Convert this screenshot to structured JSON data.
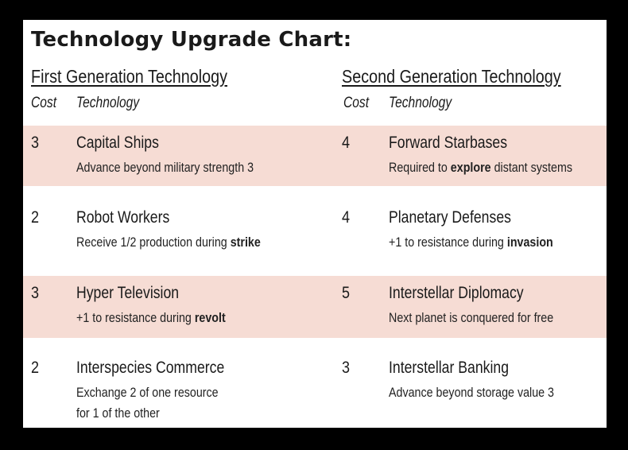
{
  "title": "Technology Upgrade Chart:",
  "first": {
    "heading": "First Generation Technology",
    "cost_label": "Cost",
    "tech_label": "Technology",
    "items": [
      {
        "cost": "3",
        "name": "Capital Ships",
        "desc_pre": "Advance beyond military strength 3",
        "desc_bold": "",
        "desc_post": "",
        "desc_line2": ""
      },
      {
        "cost": "2",
        "name": "Robot Workers",
        "desc_pre": "Receive 1/2 production during ",
        "desc_bold": "strike",
        "desc_post": "",
        "desc_line2": ""
      },
      {
        "cost": "3",
        "name": "Hyper Television",
        "desc_pre": "+1 to resistance during ",
        "desc_bold": "revolt",
        "desc_post": "",
        "desc_line2": ""
      },
      {
        "cost": "2",
        "name": "Interspecies Commerce",
        "desc_pre": "Exchange 2 of one resource",
        "desc_bold": "",
        "desc_post": "",
        "desc_line2": "for 1 of the other"
      }
    ]
  },
  "second": {
    "heading": "Second Generation Technology",
    "cost_label": "Cost",
    "tech_label": "Technology",
    "items": [
      {
        "cost": "4",
        "name": "Forward Starbases",
        "desc_pre": "Required to ",
        "desc_bold": "explore",
        "desc_post": " distant systems",
        "desc_line2": ""
      },
      {
        "cost": "4",
        "name": "Planetary Defenses",
        "desc_pre": "+1 to resistance during ",
        "desc_bold": "invasion",
        "desc_post": "",
        "desc_line2": ""
      },
      {
        "cost": "5",
        "name": "Interstellar Diplomacy",
        "desc_pre": "Next planet is conquered for free",
        "desc_bold": "",
        "desc_post": "",
        "desc_line2": ""
      },
      {
        "cost": "3",
        "name": "Interstellar Banking",
        "desc_pre": "Advance beyond storage value 3",
        "desc_bold": "",
        "desc_post": "",
        "desc_line2": ""
      }
    ]
  },
  "colors": {
    "shaded_row": "#f6dcd4",
    "background": "#000000",
    "card": "#ffffff"
  }
}
